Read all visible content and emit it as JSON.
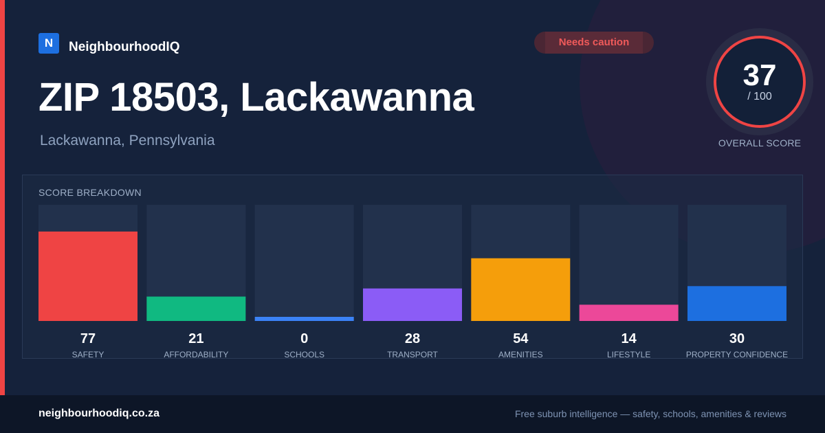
{
  "brand": {
    "logo_letter": "N",
    "name": "NeighbourhoodIQ"
  },
  "badge": {
    "label": "Needs caution",
    "color": "#ef4444"
  },
  "header": {
    "title": "ZIP 18503, Lackawanna",
    "subtitle": "Lackawanna, Pennsylvania"
  },
  "score": {
    "value": "37",
    "total": "/ 100",
    "caption": "OVERALL SCORE",
    "ring_color": "#ef4444"
  },
  "breakdown": {
    "title": "SCORE BREAKDOWN"
  },
  "chart_data": {
    "type": "bar",
    "categories": [
      "SAFETY",
      "AFFORDABILITY",
      "SCHOOLS",
      "TRANSPORT",
      "AMENITIES",
      "LIFESTYLE",
      "PROPERTY CONFIDENCE"
    ],
    "values": [
      77,
      21,
      0,
      28,
      54,
      14,
      30
    ],
    "colors": [
      "#ef4444",
      "#10b981",
      "#3b82f6",
      "#8b5cf6",
      "#f59e0b",
      "#ec4899",
      "#1d6fe0"
    ],
    "ylim": [
      0,
      100
    ],
    "grid": false
  },
  "footer": {
    "site": "neighbourhoodiq.co.za",
    "tagline": "Free suburb intelligence — safety, schools, amenities & reviews"
  }
}
